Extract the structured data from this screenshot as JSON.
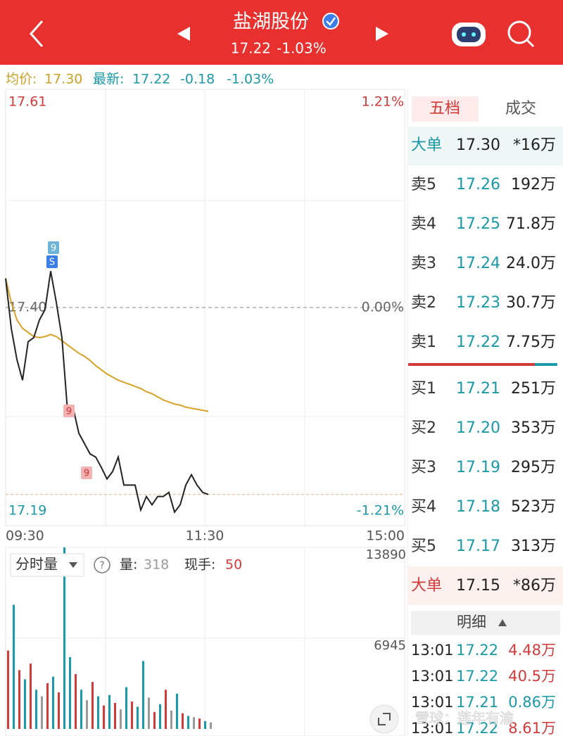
{
  "header": {
    "title": "盐湖股份",
    "price": "17.22",
    "change_pct": "-1.03%"
  },
  "summary": {
    "avg_label": "均价:",
    "avg": "17.30",
    "latest_label": "最新:",
    "latest": "17.22",
    "change": "-0.18",
    "change_pct": "-1.03%"
  },
  "chart_data": [
    {
      "type": "line",
      "x_labels": [
        "09:30",
        "11:30",
        "15:00"
      ],
      "ylim": [
        17.19,
        17.61
      ],
      "yticks": [
        17.61,
        {
          "value": 17.4,
          "label": "17.40"
        },
        17.19
      ],
      "y2lim": [
        -1.21,
        1.21
      ],
      "y2ticks": [
        {
          "value": 1.21,
          "label": "1.21%"
        },
        {
          "value": 0,
          "label": "0.00%"
        },
        {
          "value": -1.21,
          "label": "-1.21%"
        }
      ],
      "last_price_line": 17.22,
      "series": [
        {
          "color": "#222222",
          "values": [
            17.428,
            17.38,
            17.35,
            17.33,
            17.367,
            17.371,
            17.388,
            17.398,
            17.435,
            17.405,
            17.371,
            17.3,
            17.303,
            17.279,
            17.269,
            17.259,
            17.256,
            17.246,
            17.235,
            17.242,
            17.256,
            17.229,
            17.229,
            17.229,
            17.205,
            17.218,
            17.21,
            17.218,
            17.218,
            17.222,
            17.203,
            17.21,
            17.229,
            17.239,
            17.229,
            17.222,
            17.22
          ]
        },
        {
          "color": "#d9a227",
          "values": [
            17.428,
            17.405,
            17.388,
            17.38,
            17.376,
            17.372,
            17.371,
            17.372,
            17.374,
            17.372,
            17.368,
            17.364,
            17.36,
            17.356,
            17.353,
            17.349,
            17.344,
            17.34,
            17.336,
            17.333,
            17.33,
            17.328,
            17.326,
            17.324,
            17.322,
            17.319,
            17.317,
            17.314,
            17.311,
            17.309,
            17.307,
            17.306,
            17.304,
            17.303,
            17.302,
            17.301,
            17.3
          ]
        }
      ],
      "signals": [
        "9",
        "S",
        "9",
        "9"
      ]
    },
    {
      "type": "bar",
      "ylim": [
        0,
        13890
      ],
      "yticks": [
        13890,
        6945
      ],
      "values": [
        6000,
        9500,
        4500,
        3800,
        5000,
        3000,
        2500,
        3500,
        4000,
        2800,
        13890,
        5500,
        4200,
        3000,
        2200,
        3600,
        2500,
        1800,
        2600,
        2000,
        1500,
        3200,
        2100,
        1700,
        5200,
        2400,
        1300,
        1900,
        3000,
        1400,
        2700,
        1200,
        1000,
        900,
        800,
        600,
        500
      ],
      "colors": [
        "#d23a3a",
        "#1a9aa6",
        "#d23a3a",
        "#1a9aa6",
        "#d23a3a",
        "#1a9aa6",
        "#999999",
        "#d23a3a",
        "#1a9aa6",
        "#d23a3a",
        "#1a9aa6",
        "#1a9aa6",
        "#d23a3a",
        "#1a9aa6",
        "#999999",
        "#d23a3a",
        "#1a9aa6",
        "#d23a3a",
        "#1a9aa6",
        "#d23a3a",
        "#999999",
        "#1a9aa6",
        "#d23a3a",
        "#1a9aa6",
        "#1a9aa6",
        "#999999",
        "#d23a3a",
        "#1a9aa6",
        "#d23a3a",
        "#999999",
        "#1a9aa6",
        "#d23a3a",
        "#1a9aa6",
        "#999999",
        "#d23a3a",
        "#1a9aa6",
        "#999999"
      ]
    }
  ],
  "volume_controls": {
    "mode": "分时量",
    "help": "?",
    "volume_label": "量:",
    "volume": "318",
    "hand_label": "现手:",
    "hand": "50"
  },
  "order_book": {
    "tabs": [
      "五档",
      "成交"
    ],
    "rows": [
      {
        "label": "大单",
        "price": "17.30",
        "qty": "*16万",
        "label_color": "#1a9aa6"
      },
      {
        "label": "卖5",
        "price": "17.26",
        "qty": "192万",
        "label_color": "#333333"
      },
      {
        "label": "卖4",
        "price": "17.25",
        "qty": "71.8万",
        "label_color": "#333333"
      },
      {
        "label": "卖3",
        "price": "17.24",
        "qty": "24.0万",
        "label_color": "#333333"
      },
      {
        "label": "卖2",
        "price": "17.23",
        "qty": "30.7万",
        "label_color": "#333333"
      },
      {
        "label": "卖1",
        "price": "17.22",
        "qty": "7.75万",
        "label_color": "#333333"
      },
      {
        "label": "买1",
        "price": "17.21",
        "qty": "251万",
        "label_color": "#333333"
      },
      {
        "label": "买2",
        "price": "17.20",
        "qty": "353万",
        "label_color": "#333333"
      },
      {
        "label": "买3",
        "price": "17.19",
        "qty": "295万",
        "label_color": "#333333"
      },
      {
        "label": "买4",
        "price": "17.18",
        "qty": "523万",
        "label_color": "#333333"
      },
      {
        "label": "买5",
        "price": "17.17",
        "qty": "313万",
        "label_color": "#333333"
      },
      {
        "label": "大单",
        "price": "17.15",
        "qty": "*86万",
        "label_color": "#d23a3a"
      }
    ]
  },
  "detail": {
    "title": "明细",
    "trades": [
      {
        "time": "13:01",
        "price": "17.22",
        "qty": "4.48万",
        "color": "#d23a3a"
      },
      {
        "time": "13:01",
        "price": "17.22",
        "qty": "40.5万",
        "color": "#d23a3a"
      },
      {
        "time": "13:01",
        "price": "17.21",
        "qty": "0.86万",
        "color": "#1a9aa6"
      },
      {
        "time": "13:01",
        "price": "17.22",
        "qty": "8.61万",
        "color": "#d23a3a"
      }
    ]
  },
  "watermark": "雪球：莲年有渝"
}
